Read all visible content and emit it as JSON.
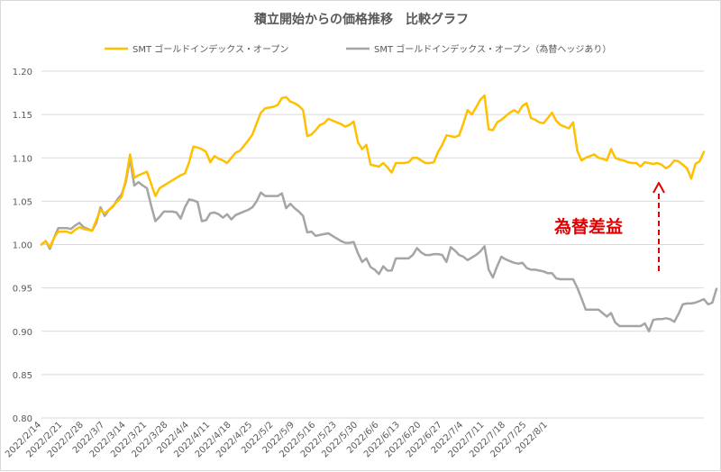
{
  "chart_data": {
    "type": "line",
    "title": "積立開始からの価格推移　比較グラフ",
    "xlabel": "",
    "ylabel": "",
    "ylim": [
      0.8,
      1.2
    ],
    "yticks": [
      "1.20",
      "1.15",
      "1.10",
      "1.05",
      "1.00",
      "0.95",
      "0.90",
      "0.85",
      "0.80"
    ],
    "grid": true,
    "legend_position": "top",
    "x_tick_labels": [
      "2022/2/14",
      "2022/2/21",
      "2022/2/28",
      "2022/3/7",
      "2022/3/14",
      "2022/3/21",
      "2022/3/28",
      "2022/4/4",
      "2022/4/11",
      "2022/4/18",
      "2022/4/25",
      "2022/5/2",
      "2022/5/9",
      "2022/5/16",
      "2022/5/23",
      "2022/5/30",
      "2022/6/6",
      "2022/6/13",
      "2022/6/20",
      "2022/6/27",
      "2022/7/4",
      "2022/7/11",
      "2022/7/18",
      "2022/7/25",
      "2022/8/1"
    ],
    "series": [
      {
        "name": "SMT ゴールドインデックス・オープン",
        "color": "#ffc000",
        "values": [
          1.0,
          1.004,
          0.997,
          1.008,
          1.015,
          1.015,
          1.015,
          1.013,
          1.017,
          1.02,
          1.018,
          1.017,
          1.016,
          1.028,
          1.04,
          1.036,
          1.04,
          1.045,
          1.05,
          1.055,
          1.075,
          1.104,
          1.077,
          1.08,
          1.082,
          1.084,
          1.07,
          1.056,
          1.065,
          1.068,
          1.071,
          1.074,
          1.077,
          1.08,
          1.082,
          1.095,
          1.113,
          1.112,
          1.11,
          1.107,
          1.095,
          1.102,
          1.099,
          1.097,
          1.094,
          1.1,
          1.106,
          1.108,
          1.114,
          1.12,
          1.127,
          1.14,
          1.152,
          1.157,
          1.158,
          1.159,
          1.161,
          1.169,
          1.17,
          1.165,
          1.163,
          1.16,
          1.155,
          1.125,
          1.127,
          1.132,
          1.138,
          1.14,
          1.145,
          1.143,
          1.141,
          1.139,
          1.136,
          1.138,
          1.142,
          1.118,
          1.11,
          1.115,
          1.092,
          1.091,
          1.09,
          1.094,
          1.089,
          1.083,
          1.094,
          1.094,
          1.094,
          1.095,
          1.1,
          1.1,
          1.097,
          1.094,
          1.094,
          1.095,
          1.107,
          1.115,
          1.126,
          1.125,
          1.124,
          1.126,
          1.14,
          1.155,
          1.15,
          1.158,
          1.167,
          1.172,
          1.133,
          1.132,
          1.141,
          1.144,
          1.148,
          1.152,
          1.155,
          1.152,
          1.16,
          1.163,
          1.146,
          1.144,
          1.141,
          1.14,
          1.146,
          1.152,
          1.143,
          1.138,
          1.136,
          1.134,
          1.141,
          1.108,
          1.097,
          1.1,
          1.102,
          1.104,
          1.1,
          1.099,
          1.097,
          1.11,
          1.1,
          1.098,
          1.097,
          1.095,
          1.094,
          1.094,
          1.09,
          1.095,
          1.094,
          1.093,
          1.094,
          1.092,
          1.088,
          1.091,
          1.097,
          1.096,
          1.092,
          1.088,
          1.076,
          1.093,
          1.096,
          1.107
        ]
      },
      {
        "name": "SMT ゴールドインデックス・オープン（為替ヘッジあり）",
        "color": "#a5a5a5",
        "values": [
          1.0,
          1.004,
          0.995,
          1.008,
          1.019,
          1.019,
          1.019,
          1.018,
          1.022,
          1.025,
          1.02,
          1.018,
          1.016,
          1.025,
          1.043,
          1.033,
          1.04,
          1.044,
          1.052,
          1.058,
          1.072,
          1.099,
          1.068,
          1.072,
          1.068,
          1.065,
          1.045,
          1.027,
          1.032,
          1.038,
          1.038,
          1.038,
          1.037,
          1.03,
          1.043,
          1.052,
          1.051,
          1.049,
          1.027,
          1.028,
          1.036,
          1.037,
          1.035,
          1.031,
          1.035,
          1.029,
          1.034,
          1.036,
          1.038,
          1.04,
          1.043,
          1.05,
          1.06,
          1.056,
          1.056,
          1.056,
          1.056,
          1.059,
          1.042,
          1.047,
          1.042,
          1.038,
          1.033,
          1.014,
          1.015,
          1.01,
          1.011,
          1.012,
          1.013,
          1.01,
          1.007,
          1.004,
          1.002,
          1.002,
          1.003,
          0.99,
          0.98,
          0.984,
          0.974,
          0.971,
          0.966,
          0.975,
          0.97,
          0.97,
          0.984,
          0.984,
          0.984,
          0.984,
          0.988,
          0.996,
          0.991,
          0.988,
          0.988,
          0.989,
          0.989,
          0.988,
          0.98,
          0.997,
          0.993,
          0.988,
          0.986,
          0.982,
          0.985,
          0.988,
          0.992,
          0.998,
          0.971,
          0.962,
          0.975,
          0.986,
          0.983,
          0.981,
          0.979,
          0.978,
          0.979,
          0.973,
          0.971,
          0.971,
          0.97,
          0.969,
          0.967,
          0.967,
          0.961,
          0.96,
          0.96,
          0.96,
          0.96,
          0.95,
          0.938,
          0.925,
          0.925,
          0.925,
          0.925,
          0.921,
          0.917,
          0.921,
          0.91,
          0.906,
          0.906,
          0.906,
          0.906,
          0.906,
          0.906,
          0.909,
          0.9,
          0.913,
          0.914,
          0.914,
          0.915,
          0.914,
          0.911,
          0.92,
          0.931,
          0.932,
          0.932,
          0.933,
          0.935,
          0.937,
          0.931,
          0.933,
          0.949
        ]
      }
    ],
    "annotations": [
      {
        "text": "為替差益",
        "color": "#e00000"
      }
    ]
  }
}
